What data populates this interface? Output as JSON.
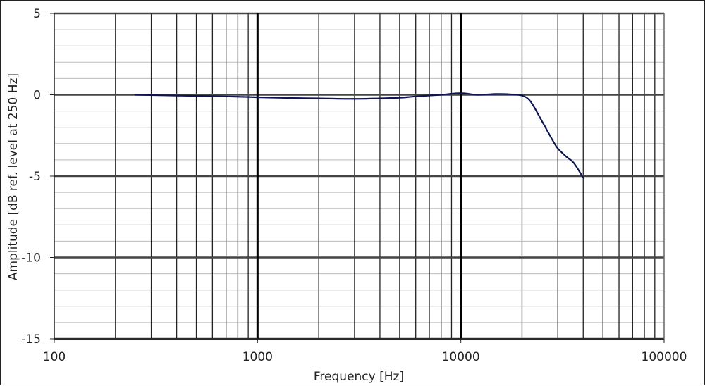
{
  "chart_data": {
    "type": "line",
    "title": "",
    "xlabel": "Frequency [Hz]",
    "ylabel": "Amplitude [dB ref. level at 250 Hz]",
    "xscale": "log",
    "xlim": [
      100,
      100000
    ],
    "ylim": [
      -15,
      5
    ],
    "x_tick_labels": [
      "100",
      "1000",
      "10000",
      "100000"
    ],
    "y_tick_labels": [
      "5",
      "0",
      "-5",
      "-10",
      "-15"
    ],
    "grid": {
      "major_x": true,
      "minor_x": true,
      "major_y": true,
      "minor_y": true,
      "minor_y_step": 1
    },
    "legend": null,
    "series": [
      {
        "name": "Amplitude",
        "color": "#0d1450",
        "x": [
          250,
          400,
          700,
          1000,
          1500,
          2000,
          3000,
          4000,
          5000,
          6000,
          8000,
          10000,
          12000,
          15000,
          18000,
          20000,
          22000,
          25000,
          28000,
          30000,
          33000,
          36000,
          40000
        ],
        "values": [
          0.0,
          -0.05,
          -0.1,
          -0.15,
          -0.2,
          -0.22,
          -0.25,
          -0.22,
          -0.18,
          -0.1,
          0.0,
          0.1,
          0.0,
          0.05,
          0.02,
          -0.05,
          -0.4,
          -1.6,
          -2.7,
          -3.3,
          -3.8,
          -4.2,
          -5.1
        ]
      }
    ]
  },
  "colors": {
    "series": "#0d1450",
    "major_grid": "#444444",
    "minor_grid": "#bbbbbb",
    "decade_grid": "#000000",
    "background": "#ffffff"
  }
}
